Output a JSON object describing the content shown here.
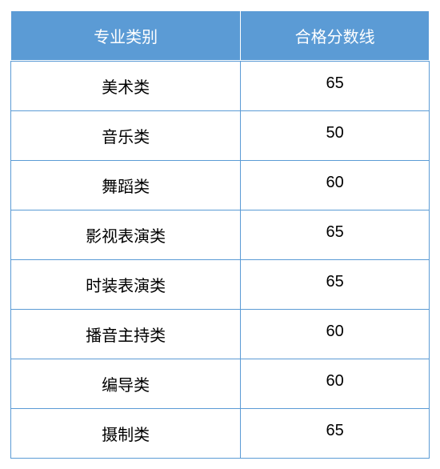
{
  "table": {
    "type": "table",
    "header_bg_color": "#5b9bd5",
    "header_text_color": "#ffffff",
    "border_color": "#5b9bd5",
    "body_bg_color": "#ffffff",
    "body_text_color": "#000000",
    "font_size": 20,
    "columns": [
      {
        "key": "category",
        "label": "专业类别",
        "width_pct": 55
      },
      {
        "key": "score",
        "label": "合格分数线",
        "width_pct": 45
      }
    ],
    "rows": [
      {
        "category": "美术类",
        "score": "65"
      },
      {
        "category": "音乐类",
        "score": "50"
      },
      {
        "category": "舞蹈类",
        "score": "60"
      },
      {
        "category": "影视表演类",
        "score": "65"
      },
      {
        "category": "时装表演类",
        "score": "65"
      },
      {
        "category": "播音主持类",
        "score": "60"
      },
      {
        "category": "编导类",
        "score": "60"
      },
      {
        "category": "摄制类",
        "score": "65"
      }
    ]
  }
}
